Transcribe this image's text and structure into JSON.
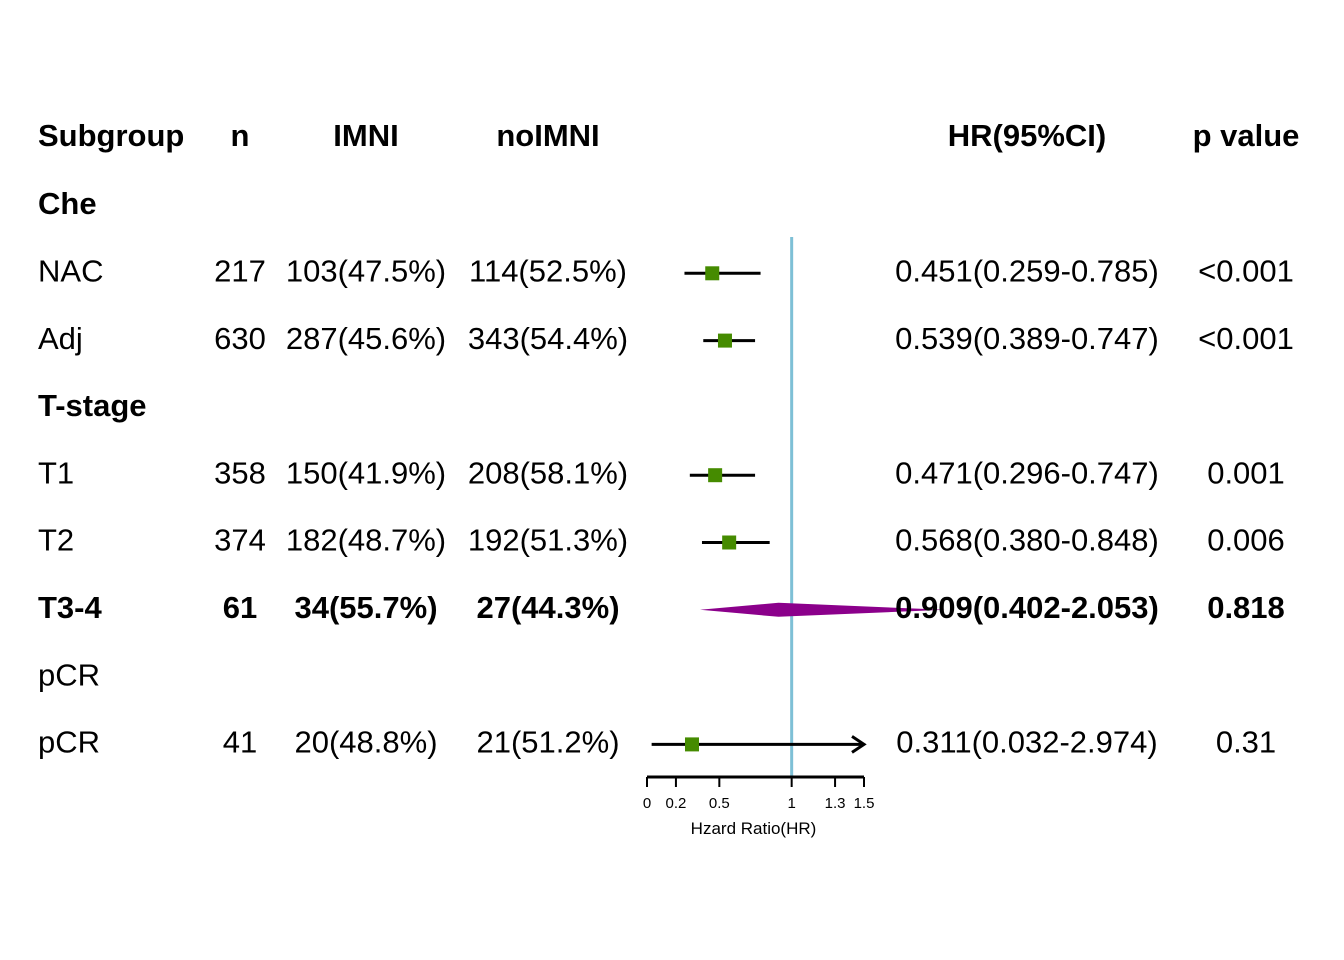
{
  "chart_data": {
    "type": "forest",
    "columns": [
      "Subgroup",
      "n",
      "IMNI",
      "noIMNI",
      "HR(95%CI)",
      "p value"
    ],
    "rows": [
      {
        "label": "Che",
        "kind": "group",
        "bold": true
      },
      {
        "label": "NAC",
        "kind": "item",
        "n": "217",
        "imni": "103(47.5%)",
        "noimni": "114(52.5%)",
        "hr": 0.451,
        "lo": 0.259,
        "hi": 0.785,
        "hr_text": "0.451(0.259-0.785)",
        "p": "<0.001",
        "marker": "square"
      },
      {
        "label": "Adj",
        "kind": "item",
        "n": "630",
        "imni": "287(45.6%)",
        "noimni": "343(54.4%)",
        "hr": 0.539,
        "lo": 0.389,
        "hi": 0.747,
        "hr_text": "0.539(0.389-0.747)",
        "p": "<0.001",
        "marker": "square"
      },
      {
        "label": "T-stage",
        "kind": "group",
        "bold": true
      },
      {
        "label": "T1",
        "kind": "item",
        "n": "358",
        "imni": "150(41.9%)",
        "noimni": "208(58.1%)",
        "hr": 0.471,
        "lo": 0.296,
        "hi": 0.747,
        "hr_text": "0.471(0.296-0.747)",
        "p": "0.001",
        "marker": "square"
      },
      {
        "label": "T2",
        "kind": "item",
        "n": "374",
        "imni": "182(48.7%)",
        "noimni": "192(51.3%)",
        "hr": 0.568,
        "lo": 0.38,
        "hi": 0.848,
        "hr_text": "0.568(0.380-0.848)",
        "p": "0.006",
        "marker": "square"
      },
      {
        "label": "T3-4",
        "kind": "item",
        "bold": true,
        "n": "61",
        "imni": "34(55.7%)",
        "noimni": "27(44.3%)",
        "hr": 0.909,
        "lo": 0.402,
        "hi": 2.053,
        "hr_text": "0.909(0.402-2.053)",
        "p": "0.818",
        "marker": "diamond"
      },
      {
        "label": "pCR",
        "kind": "group",
        "bold": false
      },
      {
        "label": "pCR",
        "kind": "item",
        "n": "41",
        "imni": "20(48.8%)",
        "noimni": "21(51.2%)",
        "hr": 0.311,
        "lo": 0.032,
        "hi": 2.974,
        "hr_text": "0.311(0.032-2.974)",
        "p": "0.31",
        "marker": "square",
        "arrow_right": true
      }
    ],
    "xlim": [
      0,
      1.5
    ],
    "xticks": [
      0,
      0.2,
      0.5,
      1,
      1.3,
      1.5
    ],
    "xtick_labels": [
      "0",
      "0.2",
      "0.5",
      "1",
      "1.3",
      "1.5"
    ],
    "xlabel": "Hzard Ratio(HR)",
    "reference_line": 1,
    "colors": {
      "square": "#458B00",
      "diamond": "#8B008B",
      "reference": "#7EC0D6",
      "ci": "#000000"
    }
  }
}
